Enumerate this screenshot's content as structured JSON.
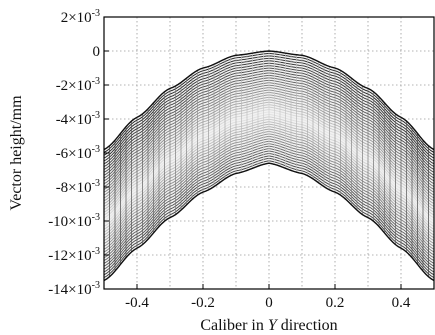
{
  "chart_data": {
    "type": "area",
    "title": "",
    "xlabel_prefix": "Caliber in ",
    "xlabel_var": "Y",
    "xlabel_suffix": " direction",
    "ylabel": "Vector height/mm",
    "xlim": [
      -0.5,
      0.5
    ],
    "ylim": [
      -0.014,
      0.002
    ],
    "grid": true,
    "x_ticks": [
      -0.4,
      -0.2,
      0,
      0.2,
      0.4
    ],
    "x_tick_labels": [
      "-0.4",
      "-0.2",
      "0",
      "0.2",
      "0.4"
    ],
    "y_ticks": [
      {
        "value": 0.002,
        "mant": "2×10",
        "exp": "-3"
      },
      {
        "value": 0,
        "mant": "0",
        "exp": ""
      },
      {
        "value": -0.002,
        "mant": "-2×10",
        "exp": "-3"
      },
      {
        "value": -0.004,
        "mant": "-4×10",
        "exp": "-3"
      },
      {
        "value": -0.006,
        "mant": "-6×10",
        "exp": "-3"
      },
      {
        "value": -0.008,
        "mant": "-8×10",
        "exp": "-3"
      },
      {
        "value": -0.01,
        "mant": "-10×10",
        "exp": "-3"
      },
      {
        "value": -0.012,
        "mant": "-12×10",
        "exp": "-3"
      },
      {
        "value": -0.014,
        "mant": "-14×10",
        "exp": "-3"
      }
    ],
    "surface": {
      "upper_curve": {
        "x": [
          -0.5,
          -0.4,
          -0.3,
          -0.2,
          -0.1,
          0,
          0.1,
          0.2,
          0.3,
          0.4,
          0.5
        ],
        "y": [
          -0.0058,
          -0.0039,
          -0.0022,
          -0.001,
          -0.00025,
          0,
          -0.00025,
          -0.001,
          -0.0022,
          -0.0039,
          -0.0058
        ]
      },
      "lower_curve": {
        "x": [
          -0.5,
          -0.4,
          -0.3,
          -0.2,
          -0.1,
          0,
          0.1,
          0.2,
          0.3,
          0.4,
          0.5
        ],
        "y": [
          -0.0135,
          -0.0116,
          -0.0098,
          -0.0083,
          -0.0072,
          -0.0066,
          -0.0072,
          -0.0083,
          -0.0098,
          -0.0116,
          -0.0135
        ]
      },
      "mesh_lines": 46
    }
  }
}
